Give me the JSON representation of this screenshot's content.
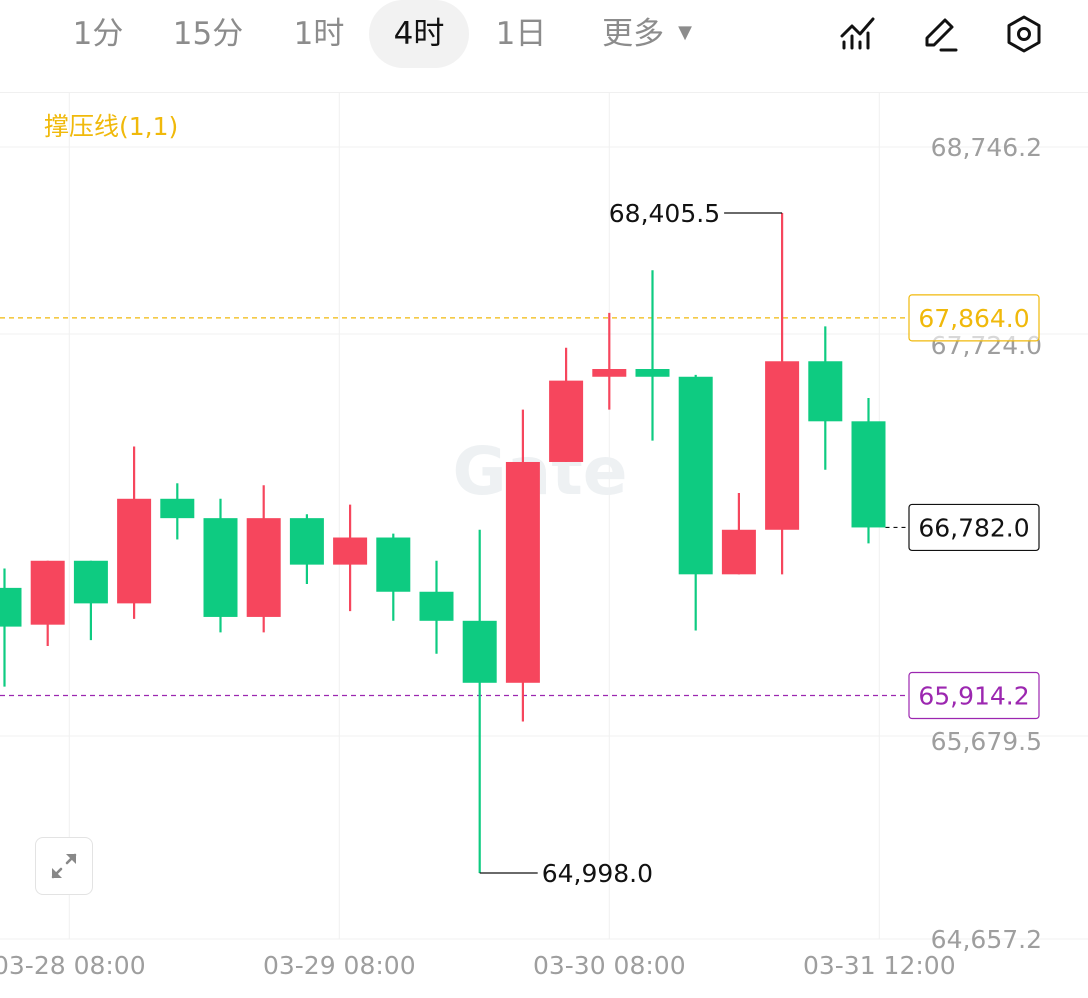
{
  "toolbar": {
    "timeframes": [
      {
        "label": "1分",
        "active": false
      },
      {
        "label": "15分",
        "active": false
      },
      {
        "label": "1时",
        "active": false
      },
      {
        "label": "4时",
        "active": true
      },
      {
        "label": "1日",
        "active": false
      }
    ],
    "more_label": "更多",
    "more_icon": "caret-down-icon",
    "right_icons": [
      "indicator-chart-icon",
      "pencil-icon",
      "settings-hexagon-icon"
    ]
  },
  "indicator": {
    "label": "撑压线(1,1)",
    "color": "#f0b90b"
  },
  "watermark": "Gate",
  "expand_icon": "expand-arrows-icon",
  "colors": {
    "up": "#f6465d",
    "down": "#0ecb81",
    "resistance": "#f0b90b",
    "support": "#9c27b0",
    "axis_text": "#9e9e9e",
    "grid": "#f0f0f0"
  },
  "chart_data": {
    "type": "candlestick",
    "y_ticks": [
      "68,746.2",
      "67,724.0",
      "65,679.5",
      "64,657.2"
    ],
    "y_tick_values": [
      68746.2,
      67724.0,
      65679.5,
      64657.2
    ],
    "x_ticks": [
      "03-28 08:00",
      "03-29 08:00",
      "03-30 08:00",
      "03-31 12:00"
    ],
    "x_tick_candle_index": [
      1.5,
      7.75,
      14,
      20.25
    ],
    "candles": [
      {
        "open": 66470,
        "close": 66270,
        "high": 66570,
        "low": 65960
      },
      {
        "open": 66280,
        "close": 66610,
        "high": 66610,
        "low": 66170
      },
      {
        "open": 66610,
        "close": 66390,
        "high": 66610,
        "low": 66200
      },
      {
        "open": 66390,
        "close": 66930,
        "high": 67200,
        "low": 66310
      },
      {
        "open": 66930,
        "close": 66830,
        "high": 67010,
        "low": 66720
      },
      {
        "open": 66830,
        "close": 66320,
        "high": 66930,
        "low": 66240
      },
      {
        "open": 66320,
        "close": 66830,
        "high": 67000,
        "low": 66240
      },
      {
        "open": 66830,
        "close": 66590,
        "high": 66850,
        "low": 66490
      },
      {
        "open": 66590,
        "close": 66730,
        "high": 66900,
        "low": 66350
      },
      {
        "open": 66730,
        "close": 66450,
        "high": 66750,
        "low": 66300
      },
      {
        "open": 66450,
        "close": 66300,
        "high": 66610,
        "low": 66130
      },
      {
        "open": 66300,
        "close": 65980,
        "high": 66770,
        "low": 64998.0
      },
      {
        "open": 65980,
        "close": 67120,
        "high": 67390,
        "low": 65780
      },
      {
        "open": 67120,
        "close": 67540,
        "high": 67710,
        "low": 67120
      },
      {
        "open": 67560,
        "close": 67600,
        "high": 67890,
        "low": 67390
      },
      {
        "open": 67600,
        "close": 67560,
        "high": 68110,
        "low": 67230
      },
      {
        "open": 67560,
        "close": 66540,
        "high": 67570,
        "low": 66250
      },
      {
        "open": 66540,
        "close": 66770,
        "high": 66960,
        "low": 66540
      },
      {
        "open": 66770,
        "close": 67640,
        "high": 68405.5,
        "low": 66540
      },
      {
        "open": 67640,
        "close": 67330,
        "high": 67820,
        "low": 67080
      },
      {
        "open": 67330,
        "close": 66782.0,
        "high": 67450,
        "low": 66700
      }
    ],
    "high_label": "68,405.5",
    "low_label": "64,998.0",
    "resistance": {
      "value": 67864.0,
      "label": "67,864.0"
    },
    "support": {
      "value": 65914.2,
      "label": "65,914.2"
    },
    "last_price": {
      "value": 66782.0,
      "label": "66,782.0"
    }
  }
}
